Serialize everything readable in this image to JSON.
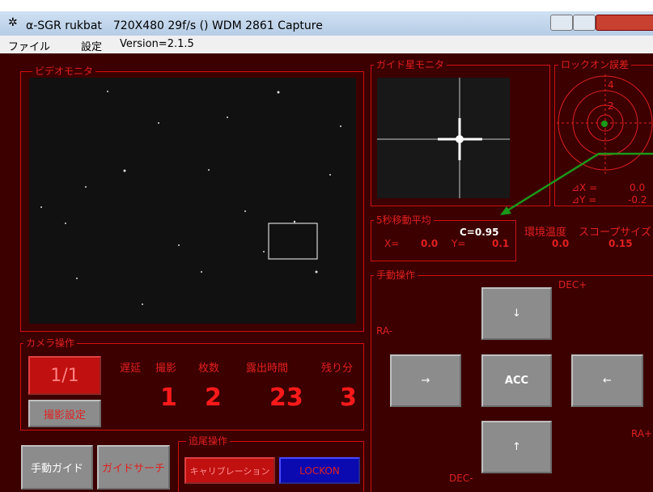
{
  "window": {
    "title": "α-SGR rukbat　720X480 29f/s () WDM 2861 Capture"
  },
  "menu": [
    "ファイル",
    "設定",
    "Version=2.1.5"
  ],
  "video_monitor": {
    "label": "ビデオモニタ"
  },
  "guide_monitor": {
    "label": "ガイド星モニタ"
  },
  "lockon_error": {
    "label": "ロックオン誤差",
    "rings": [
      "4",
      "2"
    ],
    "dx_label": "⊿X =",
    "dx": "0.0",
    "dy_label": "⊿Y =",
    "dy": "-0.2"
  },
  "moving_average": {
    "label": "5秒移動平均",
    "c": "C=0.95",
    "x_label": "X=",
    "x": "0.0",
    "y_label": "Y=",
    "y": "0.1"
  },
  "environment": {
    "temp_label": "環境温度",
    "temp": "0.0",
    "scope_label": "スコープサイズ",
    "scope": "0.15"
  },
  "manual": {
    "label": "手動操作",
    "dec_plus": "DEC+",
    "ra_minus": "RA-",
    "ra_plus": "RA+",
    "dec_minus": "DEC-",
    "up": "↓",
    "left": "→",
    "acc": "ACC",
    "right": "←",
    "down": "↑"
  },
  "camera": {
    "label": "カメラ操作",
    "ratio": "1/1",
    "settings": "撮影設定",
    "headers": [
      "遅延",
      "撮影",
      "枚数",
      "露出時間",
      "残り分"
    ],
    "values": [
      "1",
      "2",
      "23",
      "3"
    ]
  },
  "buttons": {
    "manual_guide": "手動ガイド",
    "guide_search": "ガイドサーチ"
  },
  "tracking": {
    "label": "追尾操作",
    "calibration": "キャリブレーション",
    "lockon": "LOCKON"
  }
}
